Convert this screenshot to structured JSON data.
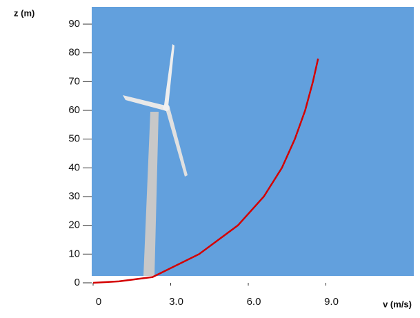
{
  "chart_data": {
    "type": "line",
    "x_label": "v (m/s)",
    "y_label": "z (m)",
    "x": [
      0,
      1,
      2.3,
      4.1,
      5.6,
      6.6,
      7.3,
      7.8,
      8.2,
      8.5,
      8.7
    ],
    "series": [
      {
        "color": "#d40000",
        "values": [
          0,
          0.5,
          2,
          10,
          20,
          30,
          40,
          50,
          60,
          70,
          78
        ]
      }
    ],
    "xlim": [
      0,
      12.4
    ],
    "ylim": [
      0,
      96
    ],
    "xticks": [
      0,
      {
        "value": 3,
        "label": "3.0"
      },
      {
        "value": 6,
        "label": "6.0"
      },
      {
        "value": 9,
        "label": "9.0"
      }
    ],
    "yticks": [
      0,
      10,
      20,
      30,
      40,
      50,
      60,
      70,
      80,
      90
    ],
    "background": "#62a0dd"
  }
}
